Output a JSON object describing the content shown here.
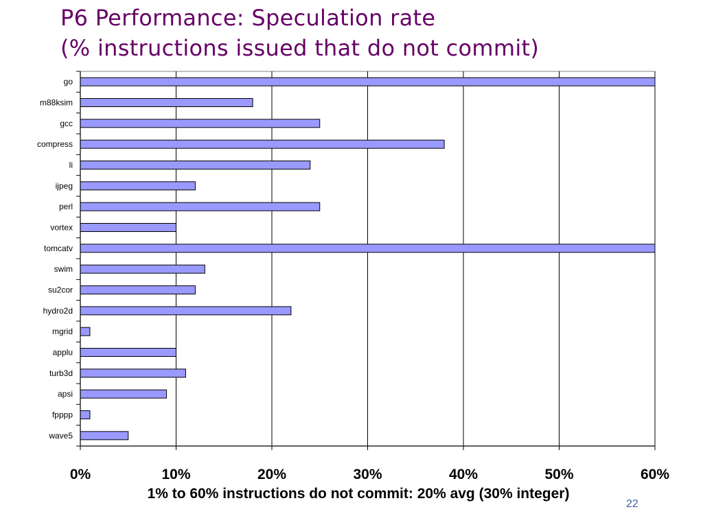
{
  "slide": {
    "title_line1": "P6 Performance: Speculation rate",
    "title_line2": "(% instructions issued that do not commit)",
    "caption": "1% to 60% instructions do not commit: 20% avg (30% integer)",
    "page_number": "22",
    "colors": {
      "title": "#660066",
      "bar_fill": "#9999ff",
      "page_number": "#3a5ca8"
    }
  },
  "chart_data": {
    "type": "bar",
    "orientation": "horizontal",
    "categories": [
      "go",
      "m88ksim",
      "gcc",
      "compress",
      "li",
      "ijpeg",
      "perl",
      "vortex",
      "tomcatv",
      "swim",
      "su2cor",
      "hydro2d",
      "mgrid",
      "applu",
      "turb3d",
      "apsi",
      "fpppp",
      "wave5"
    ],
    "values": [
      60,
      18,
      25,
      38,
      24,
      12,
      25,
      10,
      60,
      13,
      12,
      22,
      1,
      10,
      11,
      9,
      1,
      5
    ],
    "xlim": [
      0,
      60
    ],
    "xticks": [
      "0%",
      "10%",
      "20%",
      "30%",
      "40%",
      "50%",
      "60%"
    ],
    "grid": "vertical",
    "legend": "none"
  }
}
